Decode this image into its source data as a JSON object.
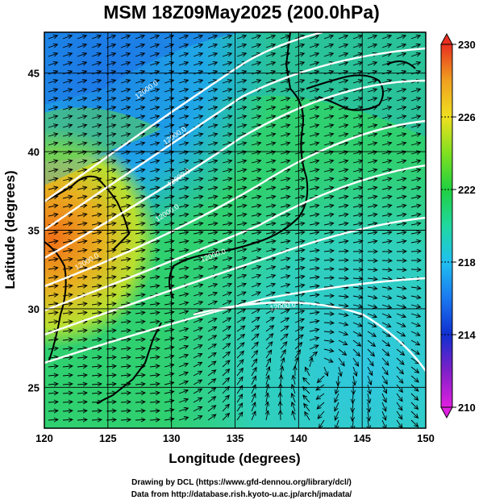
{
  "title": "MSM 18Z09May2025 (200.0hPa)",
  "footer": {
    "line1": "Drawing by DCL (https://www.gfd-dennou.org/library/dcl/)",
    "line2": "Data from http://database.rish.kyoto-u.ac.jp/arch/jmadata/"
  },
  "map": {
    "xlabel": "Longitude (degrees)",
    "ylabel": "Latitude  (degrees)",
    "lon_range": [
      120,
      150
    ],
    "lat_range": [
      22.4,
      47.6
    ],
    "x_ticks": [
      "120",
      "125",
      "130",
      "135",
      "140",
      "145",
      "150"
    ],
    "y_ticks": [
      "25",
      "30",
      "35",
      "40",
      "45"
    ],
    "grid": true
  },
  "colorbar": {
    "range": [
      210,
      230
    ],
    "tick_labels": [
      "230",
      "226",
      "222",
      "218",
      "214",
      "210"
    ]
  },
  "contour_labels": [
    "12000.0",
    "12000.0",
    "12000.0",
    "12000.0",
    "12000.0",
    "12000.0",
    "12000.0"
  ],
  "colors": {
    "cold": "#1c6ee6",
    "cool": "#1fb8e6",
    "mid": "#22d36a",
    "warm": "#d8e020",
    "hot": "#f07018"
  }
}
